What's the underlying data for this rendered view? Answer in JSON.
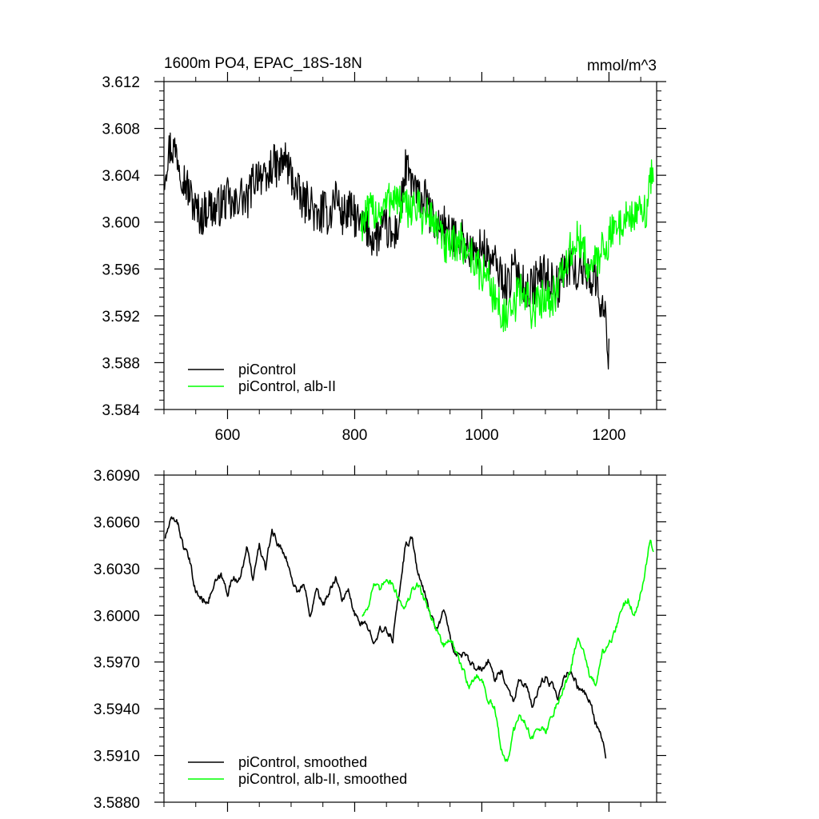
{
  "chart_data": [
    {
      "type": "line",
      "title": "1600m PO4, EPAC_18S-18N",
      "units": "mmol/m^3",
      "xlim": [
        500,
        1275
      ],
      "ylim": [
        3.584,
        3.612
      ],
      "xticks": [
        600,
        800,
        1000,
        1200
      ],
      "xtick_labels": [
        "600",
        "800",
        "1000",
        "1200"
      ],
      "yticks": [
        3.584,
        3.588,
        3.592,
        3.596,
        3.6,
        3.604,
        3.608,
        3.612
      ],
      "ytick_labels": [
        "3.584",
        "3.588",
        "3.592",
        "3.596",
        "3.600",
        "3.604",
        "3.608",
        "3.612"
      ],
      "legend_position": "bottom-left",
      "grid": false,
      "series": [
        {
          "name": "piControl",
          "color": "#000000",
          "noise": 0.0018,
          "x": [
            500,
            505,
            510,
            520,
            530,
            540,
            550,
            560,
            570,
            580,
            590,
            600,
            610,
            620,
            630,
            640,
            650,
            660,
            670,
            680,
            690,
            700,
            710,
            720,
            730,
            740,
            750,
            760,
            770,
            780,
            790,
            800,
            810,
            820,
            830,
            840,
            850,
            860,
            870,
            880,
            890,
            900,
            910,
            920,
            930,
            940,
            950,
            960,
            970,
            980,
            990,
            1000,
            1010,
            1020,
            1030,
            1040,
            1050,
            1060,
            1070,
            1080,
            1090,
            1100,
            1110,
            1120,
            1130,
            1140,
            1150,
            1160,
            1170,
            1180,
            1190,
            1195,
            1200
          ],
          "y": [
            3.604,
            3.6055,
            3.6065,
            3.606,
            3.604,
            3.6025,
            3.601,
            3.6005,
            3.6015,
            3.601,
            3.6015,
            3.602,
            3.601,
            3.6025,
            3.6015,
            3.6035,
            3.6045,
            3.603,
            3.605,
            3.6045,
            3.6055,
            3.604,
            3.6025,
            3.6015,
            3.602,
            3.6,
            3.601,
            3.6005,
            3.6025,
            3.6005,
            3.601,
            3.6005,
            3.5995,
            3.5995,
            3.5985,
            3.599,
            3.5995,
            3.5985,
            3.6,
            3.6045,
            3.6035,
            3.602,
            3.602,
            3.6005,
            3.5995,
            3.6,
            3.5985,
            3.599,
            3.5985,
            3.5975,
            3.597,
            3.598,
            3.597,
            3.5965,
            3.5955,
            3.5945,
            3.596,
            3.5955,
            3.594,
            3.5945,
            3.5955,
            3.5955,
            3.595,
            3.5945,
            3.596,
            3.5965,
            3.5955,
            3.596,
            3.5955,
            3.595,
            3.5925,
            3.5915,
            3.5885
          ]
        },
        {
          "name": "piControl, alb-II",
          "color": "#00ff00",
          "noise": 0.0018,
          "x": [
            810,
            820,
            830,
            840,
            850,
            860,
            870,
            880,
            890,
            900,
            910,
            920,
            930,
            940,
            950,
            960,
            970,
            980,
            990,
            1000,
            1010,
            1020,
            1030,
            1040,
            1050,
            1060,
            1070,
            1080,
            1090,
            1100,
            1110,
            1120,
            1130,
            1140,
            1150,
            1160,
            1170,
            1180,
            1190,
            1200,
            1210,
            1220,
            1230,
            1240,
            1250,
            1260,
            1265,
            1270
          ],
          "y": [
            3.6,
            3.6005,
            3.601,
            3.601,
            3.6015,
            3.6025,
            3.6015,
            3.601,
            3.6015,
            3.601,
            3.6005,
            3.6005,
            3.5995,
            3.598,
            3.5975,
            3.5985,
            3.598,
            3.5975,
            3.5965,
            3.5955,
            3.5955,
            3.5935,
            3.5925,
            3.5915,
            3.5925,
            3.5945,
            3.5935,
            3.5925,
            3.593,
            3.594,
            3.5935,
            3.5945,
            3.596,
            3.5975,
            3.5985,
            3.5975,
            3.596,
            3.5965,
            3.598,
            3.5985,
            3.5995,
            3.6,
            3.6005,
            3.6005,
            3.6005,
            3.6015,
            3.6035,
            3.6045
          ]
        }
      ]
    },
    {
      "type": "line",
      "title": "",
      "xlim": [
        500,
        1275
      ],
      "ylim": [
        3.588,
        3.609
      ],
      "xticks": [
        600,
        800,
        1000,
        1200
      ],
      "xtick_labels": [],
      "yticks": [
        3.588,
        3.591,
        3.594,
        3.597,
        3.6,
        3.603,
        3.606,
        3.609
      ],
      "ytick_labels": [
        "3.5880",
        "3.5910",
        "3.5940",
        "3.5970",
        "3.6000",
        "3.6030",
        "3.6060",
        "3.6090"
      ],
      "legend_position": "bottom-left",
      "grid": false,
      "series": [
        {
          "name": "piControl, smoothed",
          "color": "#000000",
          "noise": 0.00045,
          "x": [
            502,
            510,
            520,
            530,
            540,
            550,
            560,
            570,
            580,
            590,
            600,
            610,
            620,
            630,
            640,
            650,
            660,
            670,
            680,
            690,
            700,
            710,
            720,
            730,
            740,
            750,
            760,
            770,
            780,
            790,
            800,
            810,
            820,
            830,
            840,
            850,
            860,
            870,
            880,
            890,
            900,
            910,
            920,
            930,
            940,
            950,
            960,
            970,
            980,
            990,
            1000,
            1010,
            1020,
            1030,
            1040,
            1050,
            1060,
            1070,
            1080,
            1090,
            1100,
            1110,
            1120,
            1130,
            1140,
            1150,
            1160,
            1170,
            1180,
            1190,
            1195
          ],
          "y": [
            3.605,
            3.606,
            3.6062,
            3.6045,
            3.6035,
            3.6015,
            3.601,
            3.601,
            3.602,
            3.6025,
            3.6015,
            3.6025,
            3.6022,
            3.6045,
            3.6022,
            3.6045,
            3.603,
            3.6055,
            3.6045,
            3.604,
            3.6025,
            3.6015,
            3.602,
            3.6,
            3.602,
            3.6005,
            3.6015,
            3.6025,
            3.601,
            3.6015,
            3.6,
            3.5995,
            3.5992,
            3.5985,
            3.599,
            3.599,
            3.5985,
            3.6015,
            3.6045,
            3.605,
            3.6025,
            3.6015,
            3.6,
            3.599,
            3.6005,
            3.5985,
            3.5975,
            3.5975,
            3.597,
            3.5965,
            3.5965,
            3.597,
            3.596,
            3.5965,
            3.5955,
            3.5945,
            3.596,
            3.5955,
            3.594,
            3.5955,
            3.596,
            3.5955,
            3.5945,
            3.596,
            3.5965,
            3.5955,
            3.595,
            3.5945,
            3.593,
            3.592,
            3.5908
          ]
        },
        {
          "name": "piControl, alb-II, smoothed",
          "color": "#00ff00",
          "noise": 0.00045,
          "x": [
            812,
            820,
            830,
            840,
            850,
            860,
            870,
            880,
            890,
            900,
            910,
            920,
            930,
            940,
            950,
            960,
            970,
            980,
            990,
            1000,
            1010,
            1020,
            1030,
            1040,
            1050,
            1060,
            1070,
            1080,
            1090,
            1100,
            1110,
            1120,
            1130,
            1140,
            1150,
            1160,
            1170,
            1180,
            1190,
            1200,
            1210,
            1220,
            1230,
            1240,
            1250,
            1260,
            1265,
            1270
          ],
          "y": [
            3.6,
            3.6005,
            3.602,
            3.6015,
            3.6025,
            3.602,
            3.601,
            3.6005,
            3.6015,
            3.602,
            3.601,
            3.6,
            3.599,
            3.598,
            3.5985,
            3.5975,
            3.5965,
            3.5955,
            3.596,
            3.596,
            3.5945,
            3.594,
            3.5915,
            3.5905,
            3.5925,
            3.5935,
            3.593,
            3.592,
            3.593,
            3.5925,
            3.5935,
            3.5945,
            3.5955,
            3.5965,
            3.5985,
            3.598,
            3.596,
            3.5955,
            3.5975,
            3.598,
            3.599,
            3.6005,
            3.601,
            3.6,
            3.6015,
            3.6035,
            3.605,
            3.604
          ]
        }
      ]
    }
  ]
}
